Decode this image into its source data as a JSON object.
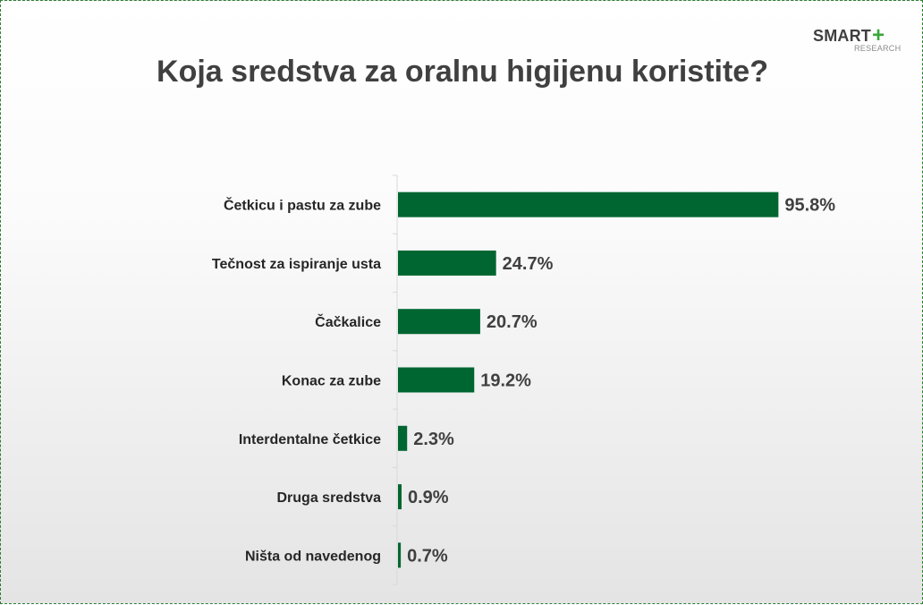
{
  "logo": {
    "word": "SMART",
    "plus": "+",
    "sub": "RESEARCH"
  },
  "colors": {
    "bar": "#006631",
    "axis": "#d9d9d9",
    "frame": "#2e7d32"
  },
  "chart_data": {
    "type": "bar",
    "orientation": "horizontal",
    "title": "Koja sredstva za oralnu higijenu koristite?",
    "categories": [
      "Četkicu i pastu za zube",
      "Tečnost za ispiranje usta",
      "Čačkalice",
      "Konac za zube",
      "Interdentalne četkice",
      "Druga sredstva",
      "Ništa od navedenog"
    ],
    "values": [
      95.8,
      24.7,
      20.7,
      19.2,
      2.3,
      0.9,
      0.7
    ],
    "value_labels": [
      "95.8%",
      "24.7%",
      "20.7%",
      "19.2%",
      "2.3%",
      "0.9%",
      "0.7%"
    ],
    "xlim": [
      0,
      100
    ],
    "grid": false,
    "legend": "none"
  }
}
